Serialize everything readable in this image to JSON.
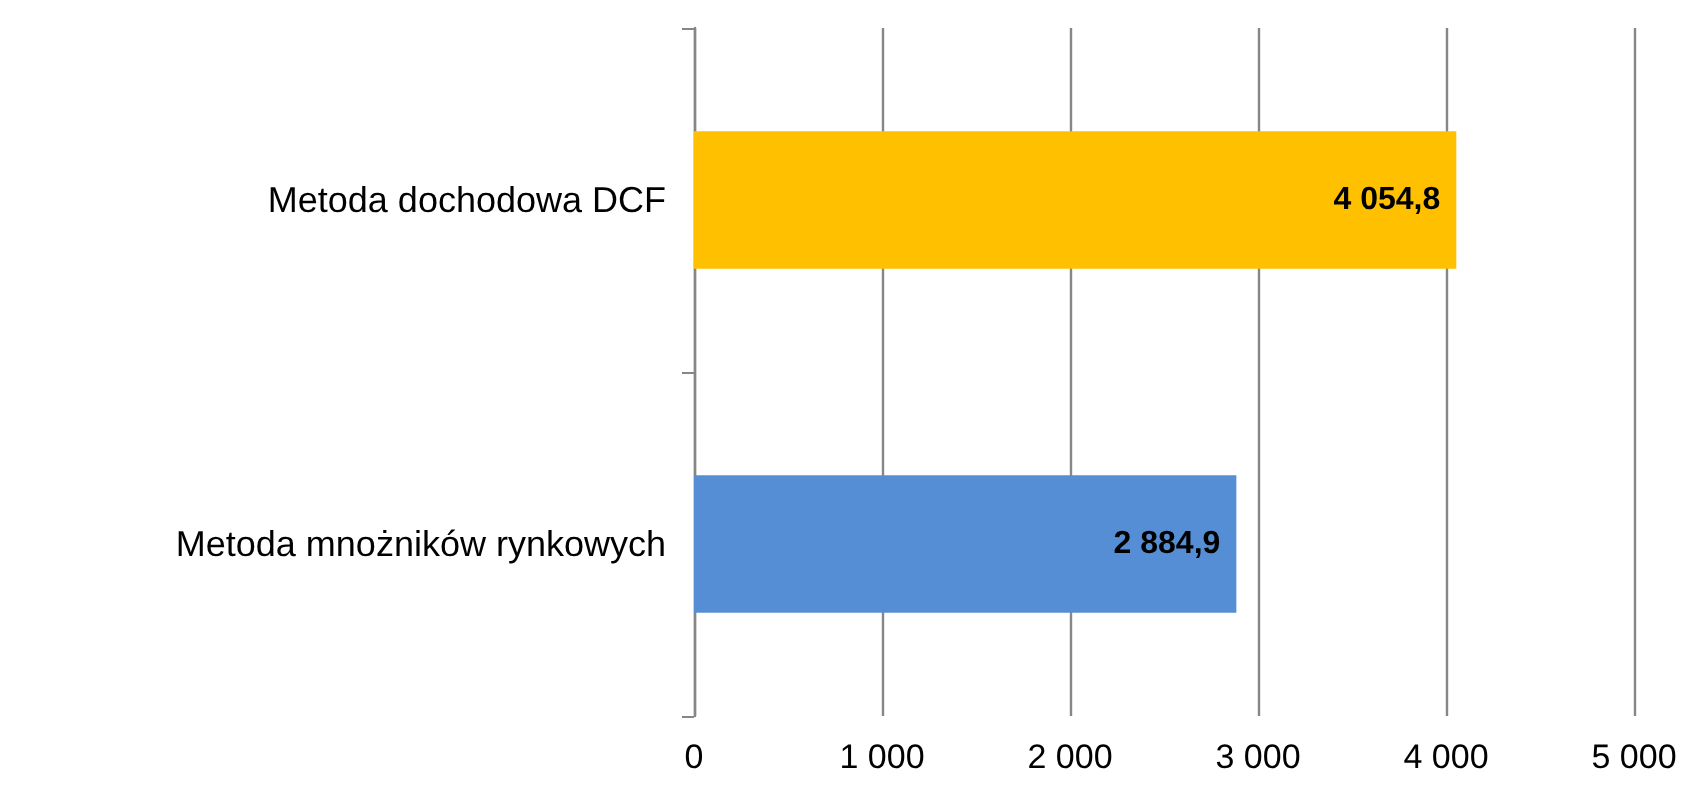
{
  "chart_data": {
    "type": "bar",
    "orientation": "horizontal",
    "categories": [
      "Metoda dochodowa DCF",
      "Metoda mnożników rynkowych"
    ],
    "values": [
      4054.8,
      2884.9
    ],
    "colors": [
      "#ffc000",
      "#558ed5"
    ],
    "value_labels": [
      "4 054,8",
      "2 884,9"
    ],
    "xlim": [
      0,
      5000
    ],
    "xticks": [
      {
        "value": 0,
        "label": "0"
      },
      {
        "value": 1000,
        "label": "1 000"
      },
      {
        "value": 2000,
        "label": "2 000"
      },
      {
        "value": 3000,
        "label": "3 000"
      },
      {
        "value": 4000,
        "label": "4 000"
      },
      {
        "value": 5000,
        "label": "5 000"
      }
    ],
    "grid": "x"
  }
}
